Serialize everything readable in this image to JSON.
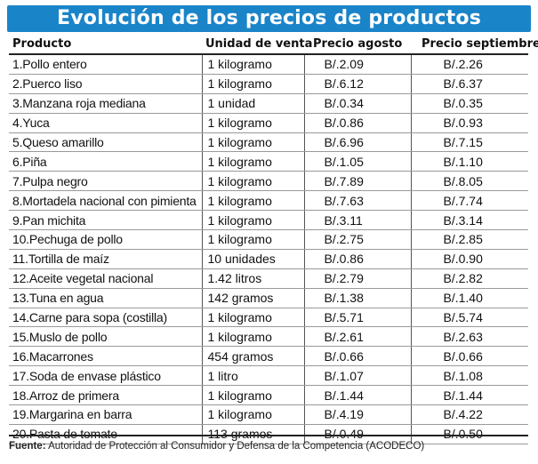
{
  "title": "Evolución de los precios de productos",
  "headers": {
    "product": "Producto",
    "unit": "Unidad de venta",
    "price_aug": "Precio agosto",
    "price_sep": "Precio septiembre"
  },
  "rows": [
    {
      "product": "1.Pollo entero",
      "unit": "1 kilogramo",
      "aug": "B/.2.09",
      "sep": "B/.2.26"
    },
    {
      "product": "2.Puerco liso",
      "unit": "1 kilogramo",
      "aug": "B/.6.12",
      "sep": "B/.6.37"
    },
    {
      "product": "3.Manzana roja mediana",
      "unit": "1 unidad",
      "aug": "B/.0.34",
      "sep": "B/.0.35"
    },
    {
      "product": "4.Yuca",
      "unit": "1 kilogramo",
      "aug": "B/.0.86",
      "sep": "B/.0.93"
    },
    {
      "product": "5.Queso amarillo",
      "unit": "1 kilogramo",
      "aug": "B/.6.96",
      "sep": "B/.7.15"
    },
    {
      "product": "6.Piña",
      "unit": "1 kilogramo",
      "aug": "B/.1.05",
      "sep": "B/.1.10"
    },
    {
      "product": "7.Pulpa negro",
      "unit": "1 kilogramo",
      "aug": "B/.7.89",
      "sep": "B/.8.05"
    },
    {
      "product": "8.Mortadela nacional con pimienta",
      "unit": "1 kilogramo",
      "aug": "B/.7.63",
      "sep": "B/.7.74"
    },
    {
      "product": "9.Pan michita",
      "unit": "1 kilogramo",
      "aug": "B/.3.11",
      "sep": "B/.3.14"
    },
    {
      "product": "10.Pechuga de pollo",
      "unit": "1 kilogramo",
      "aug": "B/.2.75",
      "sep": "B/.2.85"
    },
    {
      "product": "11.Tortilla de maíz",
      "unit": "10 unidades",
      "aug": "B/.0.86",
      "sep": "B/.0.90"
    },
    {
      "product": "12.Aceite vegetal nacional",
      "unit": "1.42 litros",
      "aug": "B/.2.79",
      "sep": "B/.2.82"
    },
    {
      "product": "13.Tuna en agua",
      "unit": "142 gramos",
      "aug": "B/.1.38",
      "sep": "B/.1.40"
    },
    {
      "product": "14.Carne para sopa (costilla)",
      "unit": "1 kilogramo",
      "aug": "B/.5.71",
      "sep": "B/.5.74"
    },
    {
      "product": "15.Muslo de pollo",
      "unit": "1 kilogramo",
      "aug": "B/.2.61",
      "sep": "B/.2.63"
    },
    {
      "product": "16.Macarrones",
      "unit": "454 gramos",
      "aug": "B/.0.66",
      "sep": "B/.0.66"
    },
    {
      "product": "17.Soda de envase plástico",
      "unit": "1 litro",
      "aug": "B/.1.07",
      "sep": "B/.1.08"
    },
    {
      "product": "18.Arroz de primera",
      "unit": "1 kilogramo",
      "aug": "B/.1.44",
      "sep": "B/.1.44"
    },
    {
      "product": "19.Margarina en barra",
      "unit": "1 kilogramo",
      "aug": "B/.4.19",
      "sep": "B/.4.22"
    },
    {
      "product": "20.Pasta de tomate",
      "unit": "113 gramos",
      "aug": "B/.0.49",
      "sep": "B/.0.50"
    }
  ],
  "footer": {
    "label": "Fuente:",
    "text": "Autoridad de Protección al Consumidor y Defensa de la Competencia (ACODECO)"
  },
  "colors": {
    "banner": "#1a84c9",
    "banner_text": "#ffffff"
  }
}
